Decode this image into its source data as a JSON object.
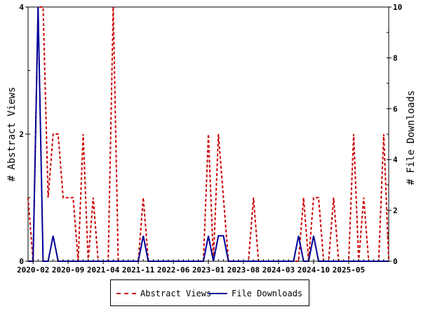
{
  "chart_data": {
    "type": "line",
    "x_tick_labels": [
      "2020-02",
      "2020-09",
      "2021-04",
      "2021-11",
      "2022-06",
      "2023-01",
      "2023-08",
      "2024-03",
      "2024-10",
      "2025-05"
    ],
    "ylabel_left": "# Abstract Views",
    "ylabel_right": "# File Downloads",
    "ylim_left": [
      0,
      4
    ],
    "ylim_right": [
      0,
      10
    ],
    "yticks_left": [
      "0",
      "2",
      "4"
    ],
    "yticks_right": [
      "0",
      "2",
      "4",
      "6",
      "8",
      "10"
    ],
    "x_start_month": "2020-01",
    "series": [
      {
        "name": "Abstract Views",
        "axis": "left",
        "color": "#cc0000",
        "style": "dashed",
        "values": [
          1,
          0,
          4,
          4,
          1,
          2,
          2,
          1,
          1,
          1,
          0,
          2,
          0,
          1,
          0,
          0,
          0,
          4,
          0,
          0,
          0,
          0,
          0,
          1,
          0,
          0,
          0,
          0,
          0,
          0,
          0,
          0,
          0,
          0,
          0,
          0,
          2,
          0,
          2,
          1,
          0,
          0,
          0,
          0,
          0,
          1,
          0,
          0,
          0,
          0,
          0,
          0,
          0,
          0,
          0,
          1,
          0,
          1,
          1,
          0,
          0,
          1,
          0,
          0,
          0,
          2,
          0,
          1,
          0,
          0,
          0,
          2,
          0
        ]
      },
      {
        "name": "File Downloads",
        "axis": "right",
        "color": "#000099",
        "style": "solid",
        "values": [
          0,
          0,
          10,
          0,
          0,
          1,
          0,
          0,
          0,
          0,
          0,
          0,
          0,
          0,
          0,
          0,
          0,
          0,
          0,
          0,
          0,
          0,
          0,
          1,
          0,
          0,
          0,
          0,
          0,
          0,
          0,
          0,
          0,
          0,
          0,
          0,
          1,
          0,
          1,
          1,
          0,
          0,
          0,
          0,
          0,
          0,
          0,
          0,
          0,
          0,
          0,
          0,
          0,
          0,
          1,
          0,
          0,
          1,
          0,
          0,
          0,
          0,
          0,
          0,
          0,
          0,
          0,
          0,
          0,
          0,
          0,
          0,
          0
        ]
      }
    ]
  },
  "legend": {
    "abstract_views": "Abstract Views",
    "file_downloads": "File Downloads"
  }
}
